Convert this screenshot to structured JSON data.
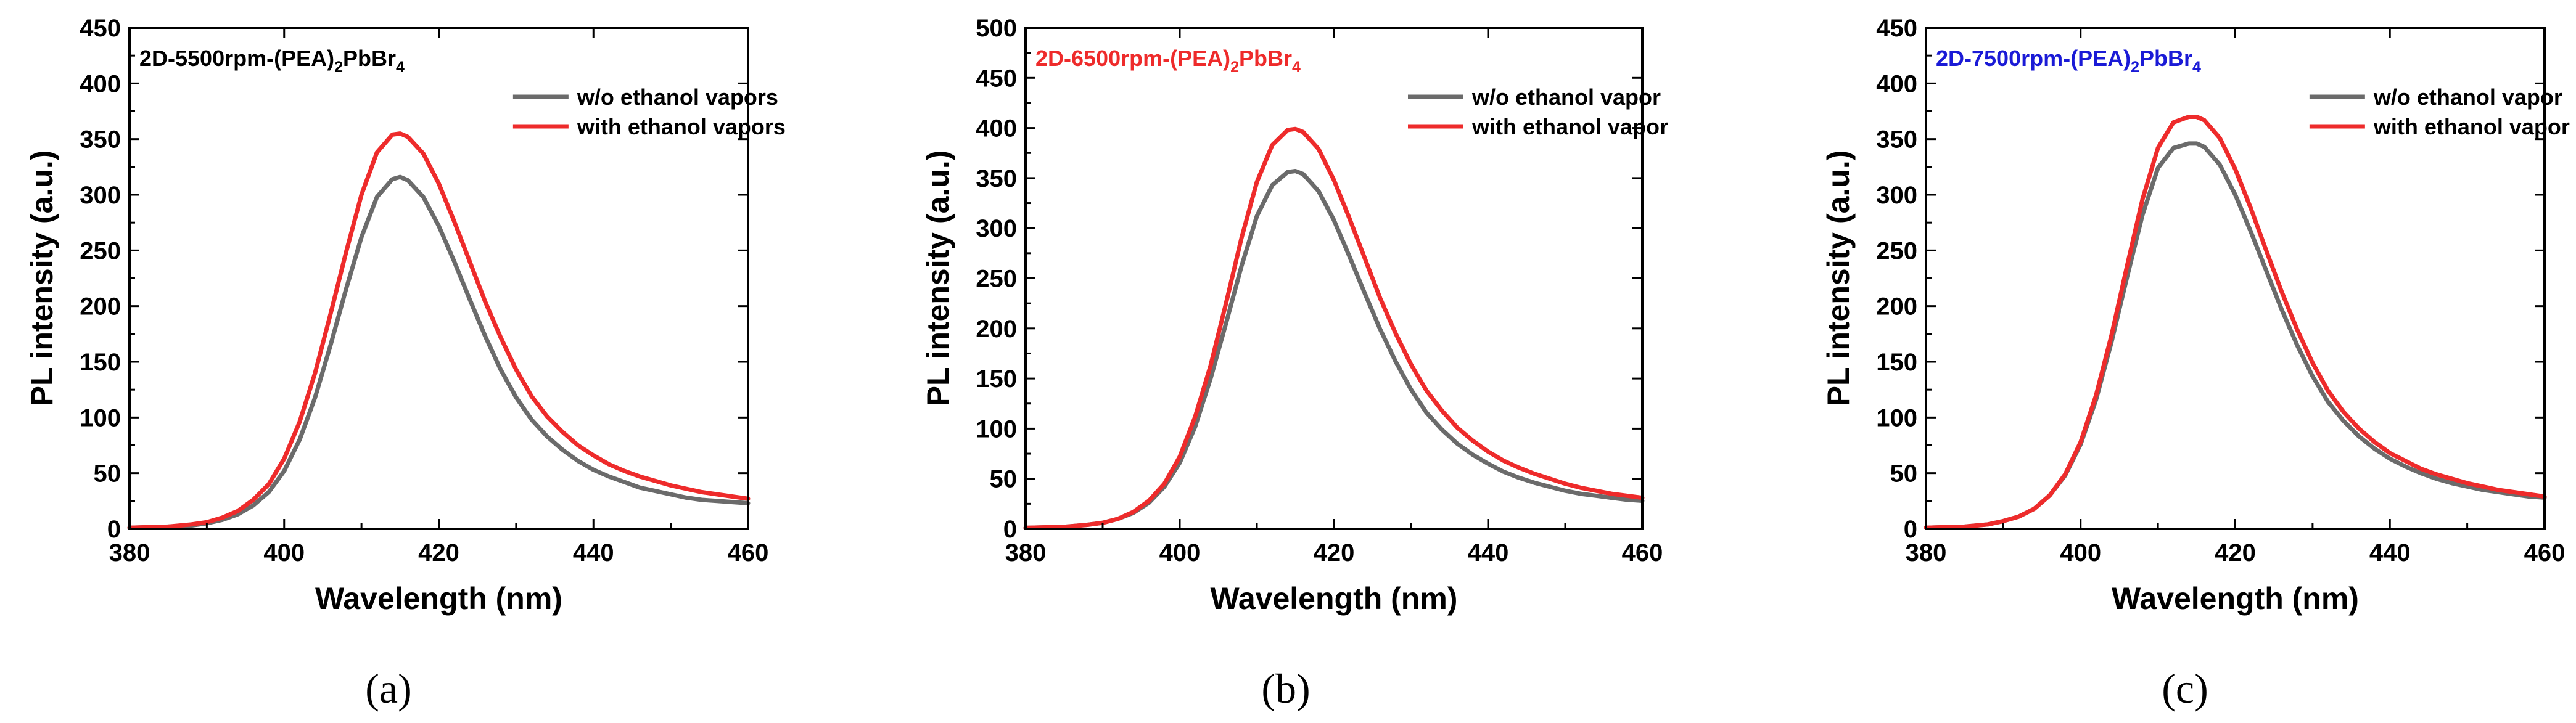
{
  "chart_data": [
    {
      "type": "line",
      "caption": "(a)",
      "title_prefix": "2D-5500rpm-(PEA)",
      "title_sub1": "2",
      "title_mid": "PbBr",
      "title_sub2": "4",
      "title_color": "#000000",
      "xlabel": "Wavelength (nm)",
      "ylabel": "PL intensity (a.u.)",
      "xlim": [
        380,
        460
      ],
      "ylim": [
        0,
        450
      ],
      "xticks": [
        380,
        400,
        420,
        440,
        460
      ],
      "yticks": [
        0,
        50,
        100,
        150,
        200,
        250,
        300,
        350,
        400,
        450
      ],
      "legend_position": "top-right",
      "series": [
        {
          "name": "w/o ethanol vapors",
          "color": "#6b6b6b",
          "x": [
            380,
            385,
            388,
            390,
            392,
            394,
            396,
            398,
            400,
            402,
            404,
            406,
            408,
            410,
            412,
            414,
            415,
            416,
            418,
            420,
            422,
            424,
            426,
            428,
            430,
            432,
            434,
            436,
            438,
            440,
            442,
            444,
            446,
            448,
            450,
            452,
            454,
            456,
            458,
            460
          ],
          "y": [
            1,
            2,
            3,
            5,
            8,
            13,
            21,
            33,
            52,
            80,
            118,
            165,
            215,
            262,
            298,
            314,
            316,
            313,
            298,
            272,
            240,
            206,
            173,
            143,
            118,
            98,
            83,
            71,
            61,
            53,
            47,
            42,
            37,
            34,
            31,
            28,
            26,
            25,
            24,
            23
          ]
        },
        {
          "name": "with ethanol vapors",
          "color": "#ee2b2b",
          "x": [
            380,
            385,
            388,
            390,
            392,
            394,
            396,
            398,
            400,
            402,
            404,
            406,
            408,
            410,
            412,
            414,
            415,
            416,
            418,
            420,
            422,
            424,
            426,
            428,
            430,
            432,
            434,
            436,
            438,
            440,
            442,
            444,
            446,
            448,
            450,
            452,
            454,
            456,
            458,
            460
          ],
          "y": [
            1,
            2,
            4,
            6,
            10,
            16,
            26,
            40,
            63,
            96,
            140,
            193,
            248,
            300,
            338,
            354,
            355,
            352,
            337,
            310,
            276,
            240,
            204,
            172,
            143,
            119,
            101,
            87,
            75,
            66,
            58,
            52,
            47,
            43,
            39,
            36,
            33,
            31,
            29,
            27
          ]
        }
      ]
    },
    {
      "type": "line",
      "caption": "(b)",
      "title_prefix": "2D-6500rpm-(PEA)",
      "title_sub1": "2",
      "title_mid": "PbBr",
      "title_sub2": "4",
      "title_color": "#ee2b2b",
      "xlabel": "Wavelength (nm)",
      "ylabel": "PL intensity (a.u.)",
      "xlim": [
        380,
        460
      ],
      "ylim": [
        0,
        500
      ],
      "xticks": [
        380,
        400,
        420,
        440,
        460
      ],
      "yticks": [
        0,
        50,
        100,
        150,
        200,
        250,
        300,
        350,
        400,
        450,
        500
      ],
      "legend_position": "top-right",
      "series": [
        {
          "name": "w/o ethanol vapor",
          "color": "#6b6b6b",
          "x": [
            380,
            385,
            388,
            390,
            392,
            394,
            396,
            398,
            400,
            402,
            404,
            406,
            408,
            410,
            412,
            414,
            415,
            416,
            418,
            420,
            422,
            424,
            426,
            428,
            430,
            432,
            434,
            436,
            438,
            440,
            442,
            444,
            446,
            448,
            450,
            452,
            454,
            456,
            458,
            460
          ],
          "y": [
            1,
            2,
            4,
            6,
            10,
            16,
            26,
            42,
            66,
            102,
            150,
            205,
            262,
            312,
            343,
            356,
            357,
            354,
            337,
            308,
            272,
            235,
            199,
            167,
            139,
            116,
            99,
            85,
            74,
            65,
            57,
            51,
            46,
            42,
            38,
            35,
            33,
            31,
            29,
            28
          ]
        },
        {
          "name": "with ethanol vapor",
          "color": "#ee2b2b",
          "x": [
            380,
            385,
            388,
            390,
            392,
            394,
            396,
            398,
            400,
            402,
            404,
            406,
            408,
            410,
            412,
            414,
            415,
            416,
            418,
            420,
            422,
            424,
            426,
            428,
            430,
            432,
            434,
            436,
            438,
            440,
            442,
            444,
            446,
            448,
            450,
            452,
            454,
            456,
            458,
            460
          ],
          "y": [
            1,
            2,
            4,
            6,
            10,
            17,
            28,
            45,
            72,
            112,
            163,
            225,
            290,
            346,
            383,
            398,
            399,
            396,
            379,
            348,
            310,
            270,
            230,
            195,
            164,
            138,
            118,
            101,
            88,
            77,
            68,
            61,
            55,
            50,
            45,
            41,
            38,
            35,
            33,
            31
          ]
        }
      ]
    },
    {
      "type": "line",
      "caption": "(c)",
      "title_prefix": "2D-7500rpm-(PEA)",
      "title_sub1": "2",
      "title_mid": "PbBr",
      "title_sub2": "4",
      "title_color": "#1a1ad6",
      "xlabel": "Wavelength (nm)",
      "ylabel": "PL intensity (a.u.)",
      "xlim": [
        380,
        460
      ],
      "ylim": [
        0,
        450
      ],
      "xticks": [
        380,
        400,
        420,
        440,
        460
      ],
      "yticks": [
        0,
        50,
        100,
        150,
        200,
        250,
        300,
        350,
        400,
        450
      ],
      "legend_position": "top-right",
      "series": [
        {
          "name": "w/o ethanol vapor",
          "color": "#6b6b6b",
          "x": [
            380,
            385,
            388,
            390,
            392,
            394,
            396,
            398,
            400,
            402,
            404,
            406,
            408,
            410,
            412,
            414,
            415,
            416,
            418,
            420,
            422,
            424,
            426,
            428,
            430,
            432,
            434,
            436,
            438,
            440,
            442,
            444,
            446,
            448,
            450,
            452,
            454,
            456,
            458,
            460
          ],
          "y": [
            1,
            2,
            4,
            7,
            11,
            18,
            30,
            48,
            76,
            116,
            168,
            226,
            282,
            324,
            342,
            346,
            346,
            343,
            327,
            300,
            267,
            232,
            197,
            165,
            137,
            114,
            97,
            83,
            72,
            63,
            56,
            50,
            45,
            41,
            38,
            35,
            33,
            31,
            29,
            28
          ]
        },
        {
          "name": "with ethanol vapor",
          "color": "#ee2b2b",
          "x": [
            380,
            385,
            388,
            390,
            392,
            394,
            396,
            398,
            400,
            402,
            404,
            406,
            408,
            410,
            412,
            414,
            415,
            416,
            418,
            420,
            422,
            424,
            426,
            428,
            430,
            432,
            434,
            436,
            438,
            440,
            442,
            444,
            446,
            448,
            450,
            452,
            454,
            456,
            458,
            460
          ],
          "y": [
            1,
            2,
            4,
            7,
            11,
            18,
            30,
            49,
            78,
            120,
            174,
            236,
            296,
            342,
            365,
            370,
            370,
            367,
            351,
            323,
            288,
            250,
            213,
            179,
            149,
            124,
            105,
            90,
            78,
            68,
            61,
            54,
            49,
            45,
            41,
            38,
            35,
            33,
            31,
            29
          ]
        }
      ]
    }
  ]
}
